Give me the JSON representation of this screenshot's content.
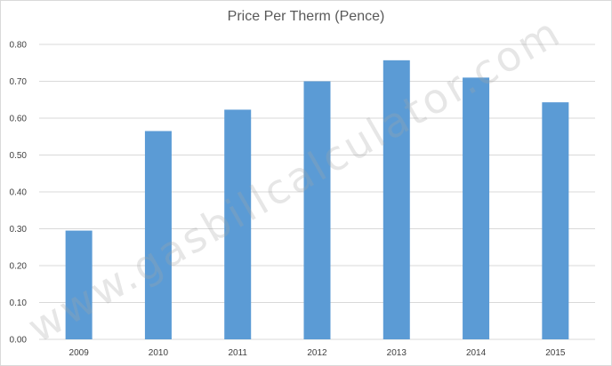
{
  "chart_data": {
    "type": "bar",
    "title": "Price Per Therm (Pence)",
    "categories": [
      "2009",
      "2010",
      "2011",
      "2012",
      "2013",
      "2014",
      "2015"
    ],
    "values": [
      0.295,
      0.565,
      0.623,
      0.7,
      0.757,
      0.71,
      0.643
    ],
    "ylim": [
      0,
      0.8
    ],
    "yticks": [
      "0.00",
      "0.10",
      "0.20",
      "0.30",
      "0.40",
      "0.50",
      "0.60",
      "0.70",
      "0.80"
    ],
    "xlabel": "",
    "ylabel": "",
    "grid": true,
    "bar_color": "#5b9bd5",
    "gridline_color": "#d9d9d9"
  },
  "watermark": "www.gasbillcalculator.com"
}
